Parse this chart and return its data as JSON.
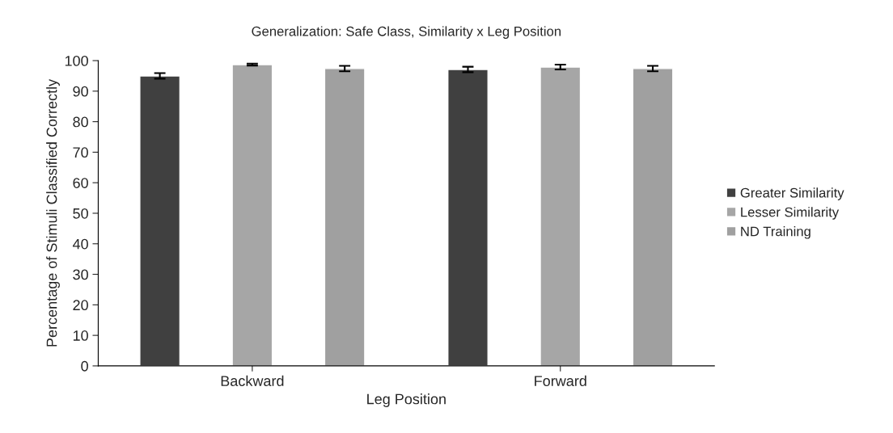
{
  "chart_data": {
    "type": "bar",
    "title": "Generalization: Safe Class, Similarity x Leg Position",
    "xlabel": "Leg Position",
    "ylabel": "Percentage of Stimuli Classified Correctly",
    "categories": [
      "Backward",
      "Forward"
    ],
    "series": [
      {
        "name": "Greater Similarity",
        "color": "#404040",
        "values": [
          95.0,
          97.1
        ],
        "errors": [
          0.9,
          0.9
        ]
      },
      {
        "name": "Lesser Similarity",
        "color": "#a6a6a6",
        "values": [
          98.7,
          97.9
        ],
        "errors": [
          0.3,
          0.8
        ]
      },
      {
        "name": "ND Training",
        "color": "#a0a0a0",
        "values": [
          97.4,
          97.4
        ],
        "errors": [
          0.9,
          0.9
        ]
      }
    ],
    "ylim": [
      0,
      100
    ],
    "yticks": [
      0,
      10,
      20,
      30,
      40,
      50,
      60,
      70,
      80,
      90,
      100
    ],
    "grid": false,
    "legend": "right"
  }
}
